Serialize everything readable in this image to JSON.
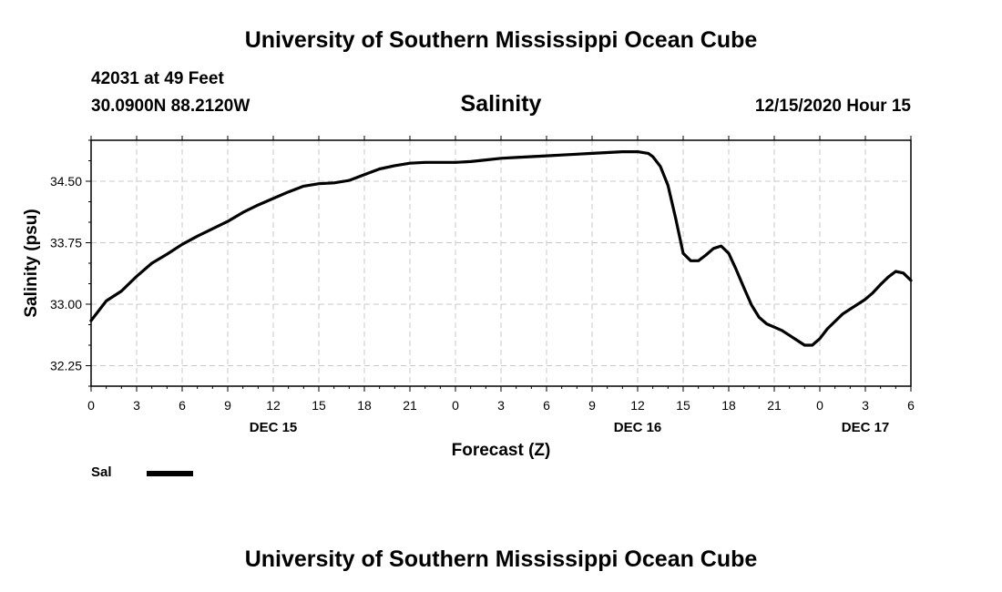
{
  "header": {
    "title": "University of Southern Mississippi Ocean Cube",
    "station": "42031 at 49 Feet",
    "coords": "30.0900N 88.2120W",
    "timestamp": "12/15/2020 Hour 15"
  },
  "footer": {
    "title": "University of Southern Mississippi Ocean Cube"
  },
  "legend": {
    "label": "Sal",
    "color": "#000000"
  },
  "chart_data": {
    "type": "line",
    "title": "Salinity",
    "xlabel": "Forecast (Z)",
    "ylabel": "Salinity (psu)",
    "xlim": [
      0,
      54
    ],
    "ylim": [
      32.0,
      35.0
    ],
    "grid": true,
    "x_tick_values": [
      0,
      3,
      6,
      9,
      12,
      15,
      18,
      21,
      24,
      27,
      30,
      33,
      36,
      39,
      42,
      45,
      48,
      51,
      54
    ],
    "x_tick_labels": [
      "0",
      "3",
      "6",
      "9",
      "12",
      "15",
      "18",
      "21",
      "0",
      "3",
      "6",
      "9",
      "12",
      "15",
      "18",
      "21",
      "0",
      "3",
      "6"
    ],
    "date_labels": [
      {
        "x": 12,
        "label": "DEC 15"
      },
      {
        "x": 36,
        "label": "DEC 16"
      },
      {
        "x": 51,
        "label": "DEC 17"
      }
    ],
    "y_tick_values": [
      32.25,
      33.0,
      33.75,
      34.5
    ],
    "y_tick_labels": [
      "32.25",
      "33.00",
      "33.75",
      "34.50"
    ],
    "series": [
      {
        "name": "Sal",
        "x": [
          0,
          1,
          2,
          3,
          4,
          5,
          6,
          7,
          8,
          9,
          10,
          11,
          12,
          13,
          14,
          15,
          16,
          17,
          18,
          19,
          20,
          21,
          22,
          23,
          24,
          25,
          26,
          27,
          28,
          29,
          30,
          31,
          32,
          33,
          34,
          35,
          36,
          36.7,
          37,
          37.5,
          38,
          38.5,
          39,
          39.5,
          40,
          40.5,
          41,
          41.5,
          42,
          42.5,
          43,
          43.5,
          44,
          44.5,
          45,
          45.5,
          46,
          46.5,
          47,
          47.5,
          48,
          48.5,
          49,
          49.5,
          50,
          50.5,
          51,
          51.5,
          52,
          52.5,
          53,
          53.5,
          54
        ],
        "values": [
          32.8,
          33.04,
          33.16,
          33.34,
          33.5,
          33.61,
          33.73,
          33.83,
          33.92,
          34.01,
          34.12,
          34.21,
          34.29,
          34.37,
          34.44,
          34.47,
          34.48,
          34.51,
          34.58,
          34.65,
          34.69,
          34.72,
          34.73,
          34.73,
          34.73,
          34.74,
          34.76,
          34.78,
          34.79,
          34.8,
          34.81,
          34.82,
          34.83,
          34.84,
          34.85,
          34.86,
          34.86,
          34.84,
          34.8,
          34.68,
          34.45,
          34.05,
          33.62,
          33.53,
          33.53,
          33.6,
          33.68,
          33.71,
          33.62,
          33.42,
          33.2,
          32.99,
          32.84,
          32.76,
          32.72,
          32.68,
          32.62,
          32.56,
          32.5,
          32.5,
          32.58,
          32.7,
          32.79,
          32.88,
          32.94,
          33.0,
          33.06,
          33.14,
          33.24,
          33.33,
          33.4,
          33.38,
          33.29
        ]
      }
    ]
  }
}
